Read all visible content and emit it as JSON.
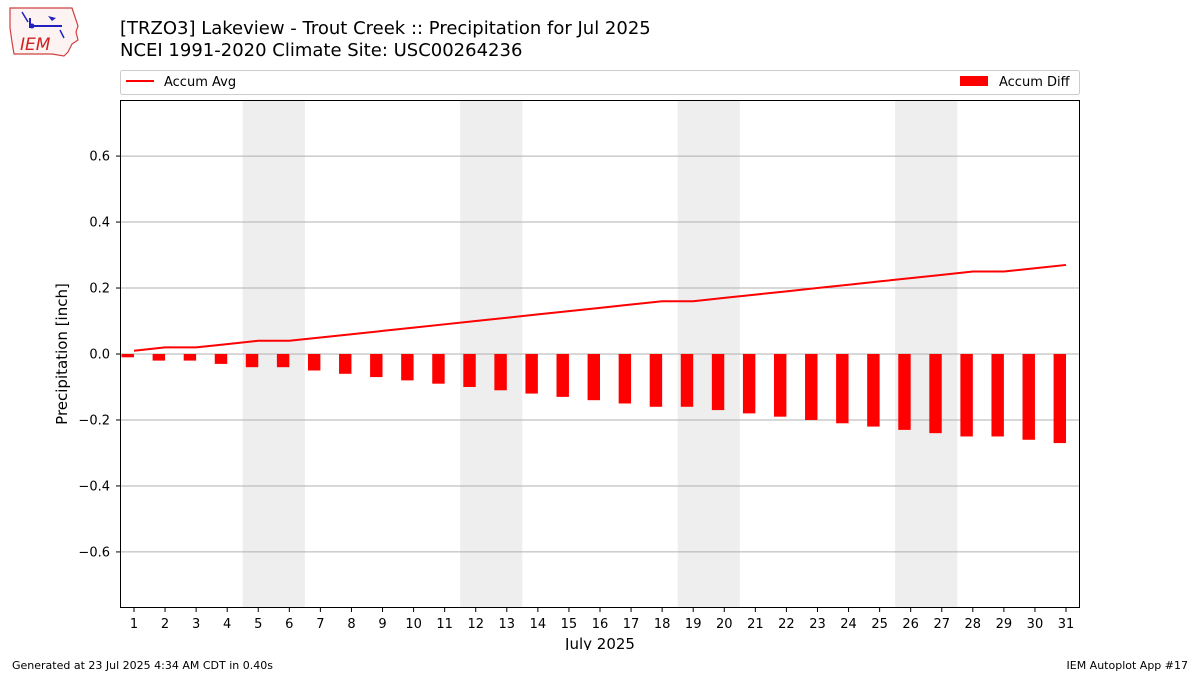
{
  "logo": {
    "text": "IEM"
  },
  "header": {
    "title_line1": "[TRZO3] Lakeview - Trout Creek :: Precipitation for Jul 2025",
    "title_line2": "NCEI 1991-2020 Climate Site: USC00264236"
  },
  "footer": {
    "generated": "Generated at 23 Jul 2025 4:34 AM CDT in 0.40s",
    "app": "IEM Autoplot App #17"
  },
  "colors": {
    "series": "#ff0000",
    "weekend_band": "#eeeeee",
    "grid": "#b0b0b0"
  },
  "chart_data": {
    "type": "bar",
    "xlabel": "July 2025",
    "ylabel": "Precipitation [inch]",
    "ylim": [
      -0.77,
      0.77
    ],
    "yticks": [
      -0.6,
      -0.4,
      -0.2,
      0.0,
      0.2,
      0.4,
      0.6
    ],
    "ytick_labels": [
      "−0.6",
      "−0.4",
      "−0.2",
      "0.0",
      "0.2",
      "0.4",
      "0.6"
    ],
    "grid": "horizontal",
    "legend_placement": "top",
    "days": [
      1,
      2,
      3,
      4,
      5,
      6,
      7,
      8,
      9,
      10,
      11,
      12,
      13,
      14,
      15,
      16,
      17,
      18,
      19,
      20,
      21,
      22,
      23,
      24,
      25,
      26,
      27,
      28,
      29,
      30,
      31
    ],
    "shaded_days": [
      [
        5,
        6
      ],
      [
        12,
        13
      ],
      [
        19,
        20
      ],
      [
        26,
        27
      ]
    ],
    "series": [
      {
        "name": "Accum Avg",
        "kind": "line",
        "values": [
          0.01,
          0.02,
          0.02,
          0.03,
          0.04,
          0.04,
          0.05,
          0.06,
          0.07,
          0.08,
          0.09,
          0.1,
          0.11,
          0.12,
          0.13,
          0.14,
          0.15,
          0.16,
          0.16,
          0.17,
          0.18,
          0.19,
          0.2,
          0.21,
          0.22,
          0.23,
          0.24,
          0.25,
          0.25,
          0.26,
          0.27
        ]
      },
      {
        "name": "Accum Diff",
        "kind": "bar",
        "values": [
          -0.01,
          -0.02,
          -0.02,
          -0.03,
          -0.04,
          -0.04,
          -0.05,
          -0.06,
          -0.07,
          -0.08,
          -0.09,
          -0.1,
          -0.11,
          -0.12,
          -0.13,
          -0.14,
          -0.15,
          -0.16,
          -0.16,
          -0.17,
          -0.18,
          -0.19,
          -0.2,
          -0.21,
          -0.22,
          -0.23,
          -0.24,
          -0.25,
          -0.25,
          -0.26,
          -0.27
        ]
      }
    ]
  }
}
